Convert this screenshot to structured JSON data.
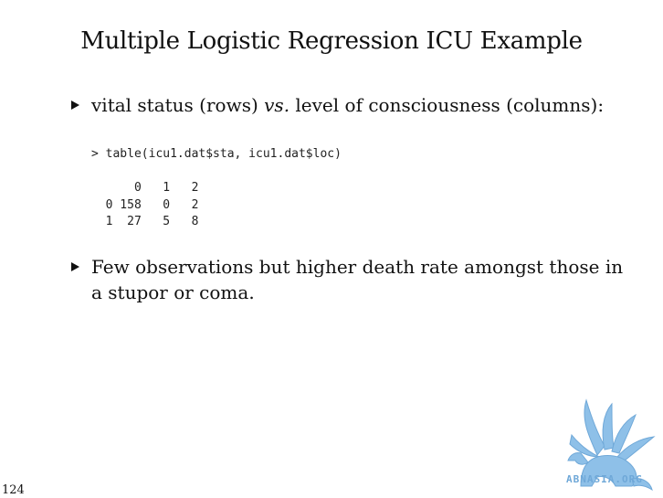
{
  "slide": {
    "title": "Multiple Logistic Regression ICU Example",
    "page_number": "124"
  },
  "bullets": [
    {
      "text_before": "vital status (rows) ",
      "text_italic": "vs.",
      "text_after": " level of consciousness (columns):"
    },
    {
      "line1": "Few observations but higher death rate amongst those in",
      "line2": "a stupor or coma."
    }
  ],
  "code": {
    "command": "> table(icu1.dat$sta, icu1.dat$loc)",
    "header": "      0   1   2",
    "row0": "  0 158   0   2",
    "row1": "  1  27   5   8"
  },
  "logo": {
    "text": "ABNASIA.ORG",
    "icon": "griffin-logo-icon",
    "color": "#6fa8d8"
  }
}
